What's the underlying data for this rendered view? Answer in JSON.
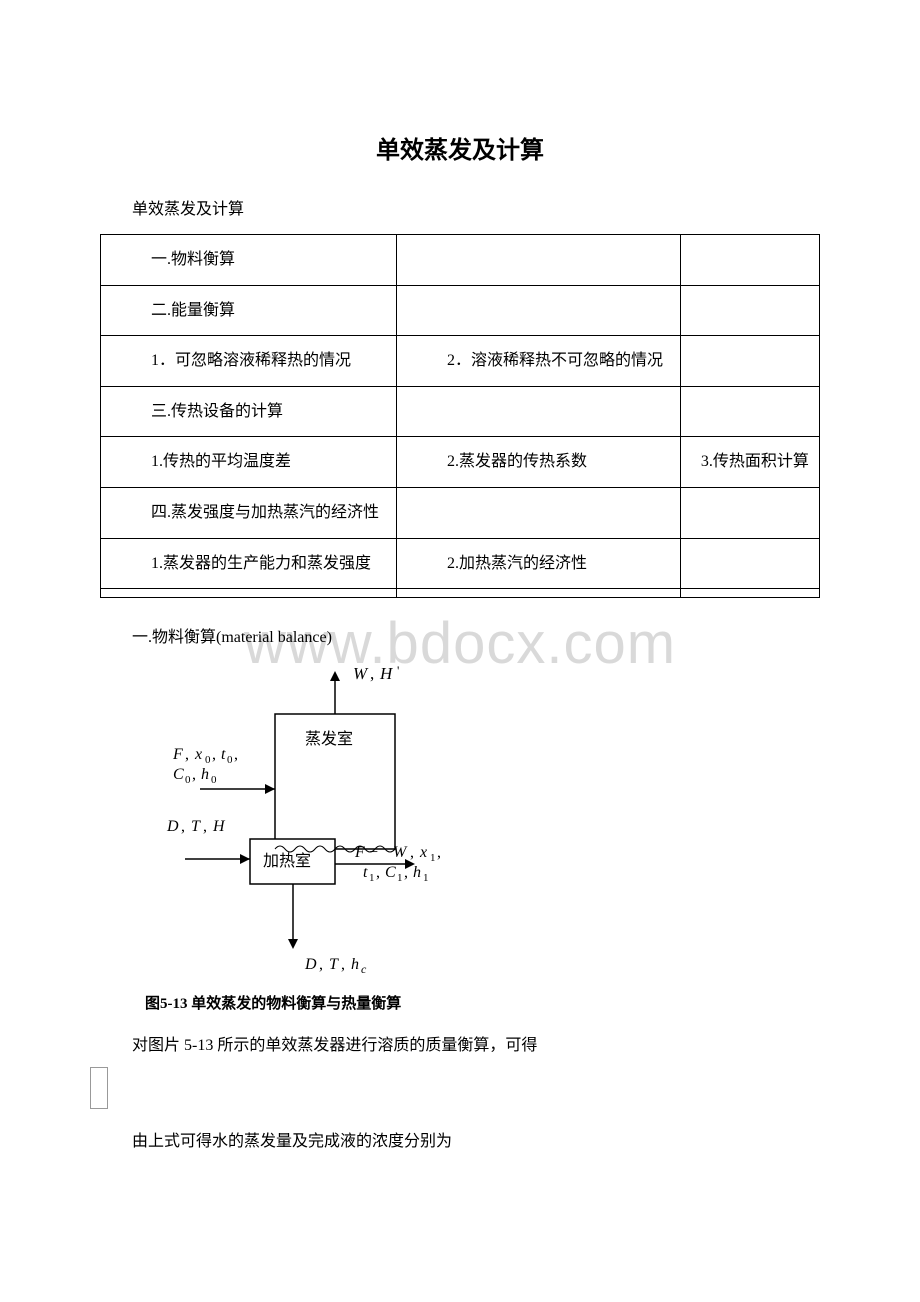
{
  "title": "单效蒸发及计算",
  "subtitle": "单效蒸发及计算",
  "outline": {
    "rows": [
      [
        "一.物料衡算",
        "",
        ""
      ],
      [
        "二.能量衡算",
        "",
        ""
      ],
      [
        "1．可忽略溶液稀释热的情况",
        "2．溶液稀释热不可忽略的情况",
        ""
      ],
      [
        "三.传热设备的计算",
        "",
        ""
      ],
      [
        "1.传热的平均温度差",
        "2.蒸发器的传热系数",
        "3.传热面积计算"
      ],
      [
        "四.蒸发强度与加热蒸汽的经济性",
        "",
        ""
      ],
      [
        "1.蒸发器的生产能力和蒸发强度",
        "2.加热蒸汽的经济性",
        ""
      ],
      [
        "",
        "",
        ""
      ]
    ],
    "col3_center_rows": [
      4
    ]
  },
  "section1_heading": "一.物料衡算(material balance)",
  "diagram": {
    "caption": "图5-13  单效蒸发的物料衡算与热量衡算",
    "labels": {
      "top_out": "W, H '",
      "evap_room": "蒸发室",
      "heat_room": "加热室",
      "feed_line1": "F, x₀, t₀,",
      "feed_line2": "C₀, h₀",
      "steam_in": "D, T, H",
      "product_line1": "F − W, x₁,",
      "product_line2": "t₁, C₁, h₁",
      "bottom_out": "D, T, h_c"
    },
    "colors": {
      "stroke": "#000000",
      "fill": "#ffffff",
      "text": "#000000"
    }
  },
  "body_text_1": "对图片 5-13 所示的单效蒸发器进行溶质的质量衡算，可得",
  "body_text_2": "由上式可得水的蒸发量及完成液的浓度分别为",
  "watermark_text": "www.bdocx.com"
}
